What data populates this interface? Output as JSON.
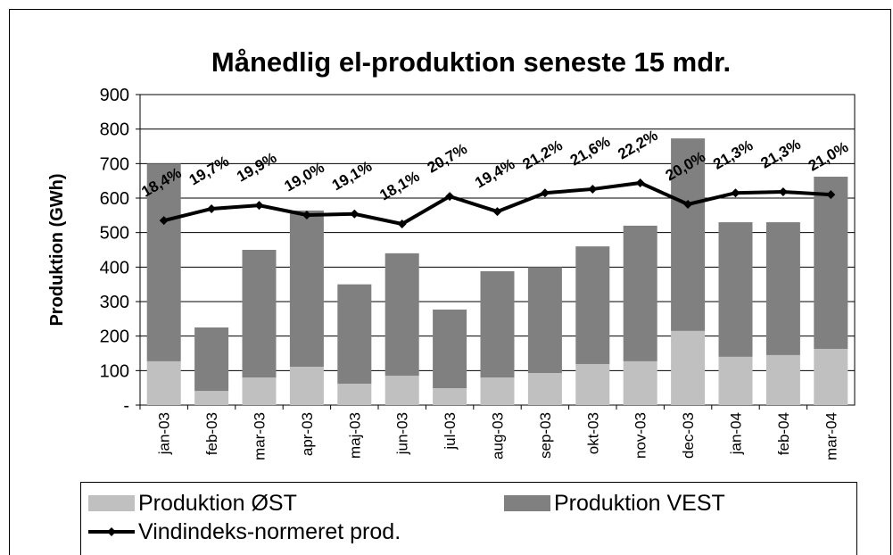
{
  "chart_data": {
    "type": "bar",
    "title": "Månedlig el-produktion seneste 15 mdr.",
    "y_label": "Produktion (GWh)",
    "categories": [
      "jan-03",
      "feb-03",
      "mar-03",
      "apr-03",
      "maj-03",
      "jun-03",
      "jul-03",
      "aug-03",
      "sep-03",
      "okt-03",
      "nov-03",
      "dec-03",
      "jan-04",
      "feb-04",
      "mar-04"
    ],
    "series": [
      {
        "name": "Produktion ØST",
        "color": "#c0c0c0",
        "type": "bar",
        "values": [
          127,
          41,
          80,
          111,
          62,
          85,
          49,
          80,
          93,
          119,
          127,
          215,
          140,
          145,
          163
        ]
      },
      {
        "name": "Produktion VEST",
        "color": "#808080",
        "type": "bar",
        "values": [
          573,
          184,
          370,
          453,
          288,
          355,
          228,
          308,
          307,
          341,
          393,
          558,
          390,
          385,
          499
        ]
      },
      {
        "name": "Vindindeks-normeret prod.",
        "color": "#000000",
        "type": "line",
        "values": [
          535,
          569,
          579,
          551,
          554,
          525,
          605,
          561,
          615,
          626,
          644,
          582,
          615,
          618,
          610
        ],
        "annotations": [
          "18,4%",
          "19,7%",
          "19,9%",
          "19,0%",
          "19,1%",
          "18,1%",
          "20,7%",
          "19,4%",
          "21,2%",
          "21,6%",
          "22,2%",
          "20,0%",
          "21,3%",
          "21,3%",
          "21,0%"
        ]
      }
    ],
    "stacked": true,
    "ylim": [
      0,
      900
    ],
    "yticks": [
      {
        "value": 0,
        "label": "-"
      },
      100,
      200,
      300,
      400,
      500,
      600,
      700,
      800,
      900
    ],
    "grid": true,
    "legend": "bottom"
  }
}
